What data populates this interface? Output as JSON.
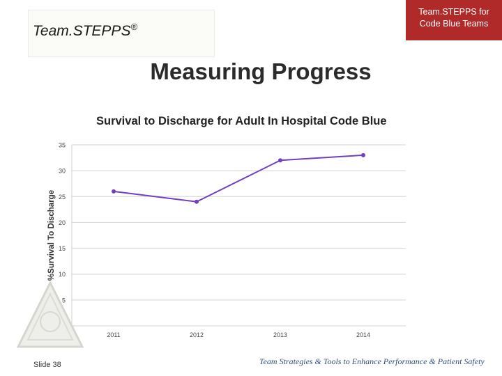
{
  "header": {
    "logo_text": "Team.STEPPS",
    "logo_mark": "®",
    "corner_text": "Team.STEPPS for\nCode Blue Teams"
  },
  "slide_title": "Measuring Progress",
  "footer": {
    "slide_number": "Slide 38",
    "tagline": "Team Strategies & Tools to Enhance Performance & Patient Safety"
  },
  "colors": {
    "accent_red": "#b02a2a",
    "line_purple": "#6f3fc0",
    "tagline_blue": "#2f4f7a"
  },
  "chart_data": {
    "type": "line",
    "title": "Survival to Discharge for Adult In Hospital Code Blue",
    "xlabel": "",
    "ylabel": "%Survival To Discharge",
    "categories": [
      "2011",
      "2012",
      "2013",
      "2014"
    ],
    "series": [
      {
        "values": [
          26,
          24,
          32,
          33
        ]
      }
    ],
    "ylim": [
      0,
      35
    ],
    "yticks": [
      "0",
      "5",
      "10",
      "15",
      "20",
      "25",
      "30",
      "35"
    ],
    "grid": true,
    "legend": "none"
  }
}
